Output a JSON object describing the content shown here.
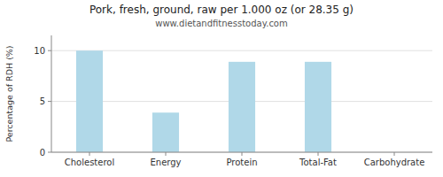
{
  "chart_data": {
    "type": "bar",
    "title": "Pork, fresh, ground, raw per 1.000 oz (or 28.35 g)",
    "subtitle": "www.dietandfitnesstoday.com",
    "categories": [
      "Cholesterol",
      "Energy",
      "Protein",
      "Total-Fat",
      "Carbohydrate"
    ],
    "values": [
      10.0,
      3.9,
      8.9,
      8.9,
      0.0
    ],
    "color": "#b0d8e8",
    "ylabel": "Percentage of RDH (%)",
    "ylim": [
      0,
      11.5
    ],
    "yticks": [
      0,
      5,
      10
    ],
    "grid": true
  }
}
